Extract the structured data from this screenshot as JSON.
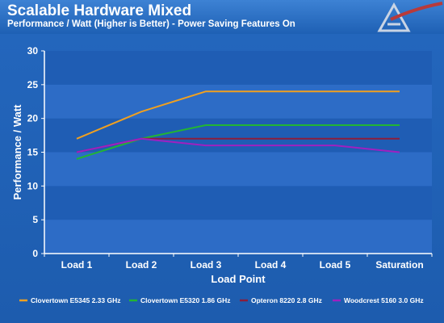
{
  "header": {
    "title": "Scalable Hardware Mixed",
    "subtitle": "Performance / Watt (Higher is Better) - Power Saving Features On"
  },
  "chart_data": {
    "type": "line",
    "title": "Scalable Hardware Mixed",
    "subtitle": "Performance / Watt (Higher is Better) - Power Saving Features On",
    "xlabel": "Load Point",
    "ylabel": "Performance / Watt",
    "categories": [
      "Load 1",
      "Load 2",
      "Load 3",
      "Load 4",
      "Load 5",
      "Saturation"
    ],
    "ylim": [
      0,
      30
    ],
    "yticks": [
      0,
      5,
      10,
      15,
      20,
      25,
      30
    ],
    "grid": "banded horizontal",
    "legend_position": "bottom",
    "series": [
      {
        "name": "Clovertown E5345 2.33 GHz",
        "color": "#f0a020",
        "values": [
          17,
          21,
          24,
          24,
          24,
          24
        ]
      },
      {
        "name": "Clovertown E5320 1.86 GHz",
        "color": "#22b533",
        "values": [
          14,
          17,
          19,
          19,
          19,
          19
        ]
      },
      {
        "name": "Opteron 8220 2.8 GHz",
        "color": "#8a1e3c",
        "values": [
          15,
          17,
          17,
          17,
          17,
          17
        ]
      },
      {
        "name": "Woodcrest 5160 3.0 GHz",
        "color": "#a020c0",
        "values": [
          15,
          17,
          16,
          16,
          16,
          15
        ]
      }
    ]
  }
}
